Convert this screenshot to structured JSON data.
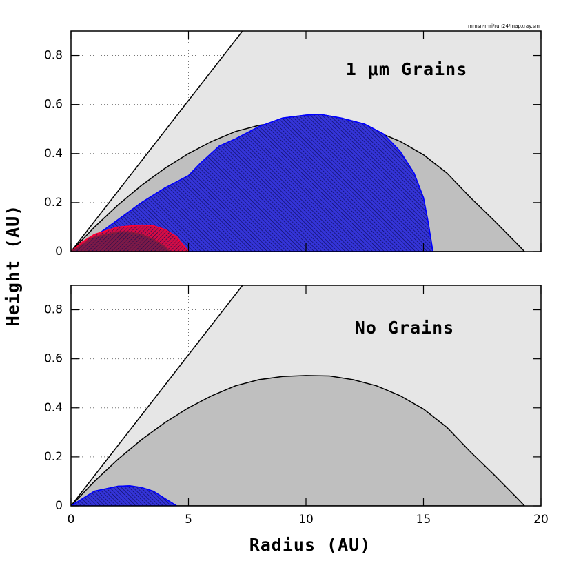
{
  "chart_data": [
    {
      "type": "area",
      "source": "mmsn-mri/run24/mapxray.sm",
      "annotation": "1 μm Grains",
      "ylabel": "Height (AU)",
      "xlim": [
        0,
        20
      ],
      "ylim": [
        0,
        0.9
      ],
      "yticks": [
        0,
        0.2,
        0.4,
        0.6,
        0.8
      ],
      "grid": true,
      "series": [
        {
          "shade": "right",
          "color": "#000000",
          "fill": "#e6e6e6",
          "x": [
            0,
            7.3
          ],
          "values": [
            0,
            0.9
          ]
        },
        {
          "color": "#000000",
          "fill": "#bfbfbf",
          "x": [
            0,
            1,
            2,
            3,
            4,
            5,
            6,
            7,
            8,
            9,
            10,
            11,
            12,
            13,
            14,
            15,
            16,
            17,
            18,
            19,
            19.3
          ],
          "values": [
            0,
            0.1,
            0.19,
            0.27,
            0.34,
            0.4,
            0.45,
            0.49,
            0.515,
            0.528,
            0.532,
            0.53,
            0.515,
            0.49,
            0.45,
            0.395,
            0.32,
            0.22,
            0.127,
            0.03,
            0
          ]
        },
        {
          "color": "#0000ff",
          "fill": "#3434d8",
          "hatch": "diagonal",
          "x": [
            0,
            1,
            2,
            3,
            4,
            5,
            5.5,
            6.3,
            7,
            8,
            9,
            10,
            10.6,
            11.5,
            12.5,
            13.3,
            14,
            14.6,
            15,
            15.2,
            15.4
          ],
          "values": [
            0,
            0.06,
            0.13,
            0.2,
            0.26,
            0.31,
            0.36,
            0.43,
            0.46,
            0.51,
            0.545,
            0.557,
            0.56,
            0.545,
            0.52,
            0.48,
            0.41,
            0.32,
            0.22,
            0.12,
            0
          ]
        },
        {
          "color": "#ff0033",
          "fill": "#c8104a",
          "hatch": "cross",
          "x": [
            0,
            0.5,
            1,
            2,
            3,
            3.5,
            4,
            4.5,
            5
          ],
          "values": [
            0,
            0.04,
            0.07,
            0.1,
            0.108,
            0.105,
            0.09,
            0.06,
            0
          ]
        },
        {
          "color": "#8b1a3a",
          "fill": "#7a1a4a",
          "hatch": "cross",
          "x": [
            0,
            1,
            2,
            2.5,
            3,
            3.5,
            4,
            4.2
          ],
          "values": [
            0,
            0.06,
            0.08,
            0.08,
            0.07,
            0.05,
            0.02,
            0
          ]
        }
      ]
    },
    {
      "type": "area",
      "annotation": "No Grains",
      "xlabel": "Radius (AU)",
      "xlim": [
        0,
        20
      ],
      "ylim": [
        0,
        0.9
      ],
      "xticks": [
        0,
        5,
        10,
        15,
        20
      ],
      "yticks": [
        0,
        0.2,
        0.4,
        0.6,
        0.8
      ],
      "grid": true,
      "series": [
        {
          "shade": "right",
          "color": "#000000",
          "fill": "#e6e6e6",
          "x": [
            0,
            7.3
          ],
          "values": [
            0,
            0.9
          ]
        },
        {
          "color": "#000000",
          "fill": "#bfbfbf",
          "x": [
            0,
            1,
            2,
            3,
            4,
            5,
            6,
            7,
            8,
            9,
            10,
            11,
            12,
            13,
            14,
            15,
            16,
            17,
            18,
            19,
            19.3
          ],
          "values": [
            0,
            0.1,
            0.19,
            0.27,
            0.34,
            0.4,
            0.45,
            0.49,
            0.515,
            0.528,
            0.532,
            0.53,
            0.515,
            0.49,
            0.45,
            0.395,
            0.32,
            0.22,
            0.127,
            0.03,
            0
          ]
        },
        {
          "color": "#0000ff",
          "fill": "#3434d8",
          "hatch": "diagonal",
          "x": [
            0,
            1,
            2,
            2.5,
            3,
            3.5,
            4,
            4.5
          ],
          "values": [
            0,
            0.06,
            0.08,
            0.082,
            0.075,
            0.06,
            0.03,
            0
          ]
        }
      ]
    }
  ]
}
